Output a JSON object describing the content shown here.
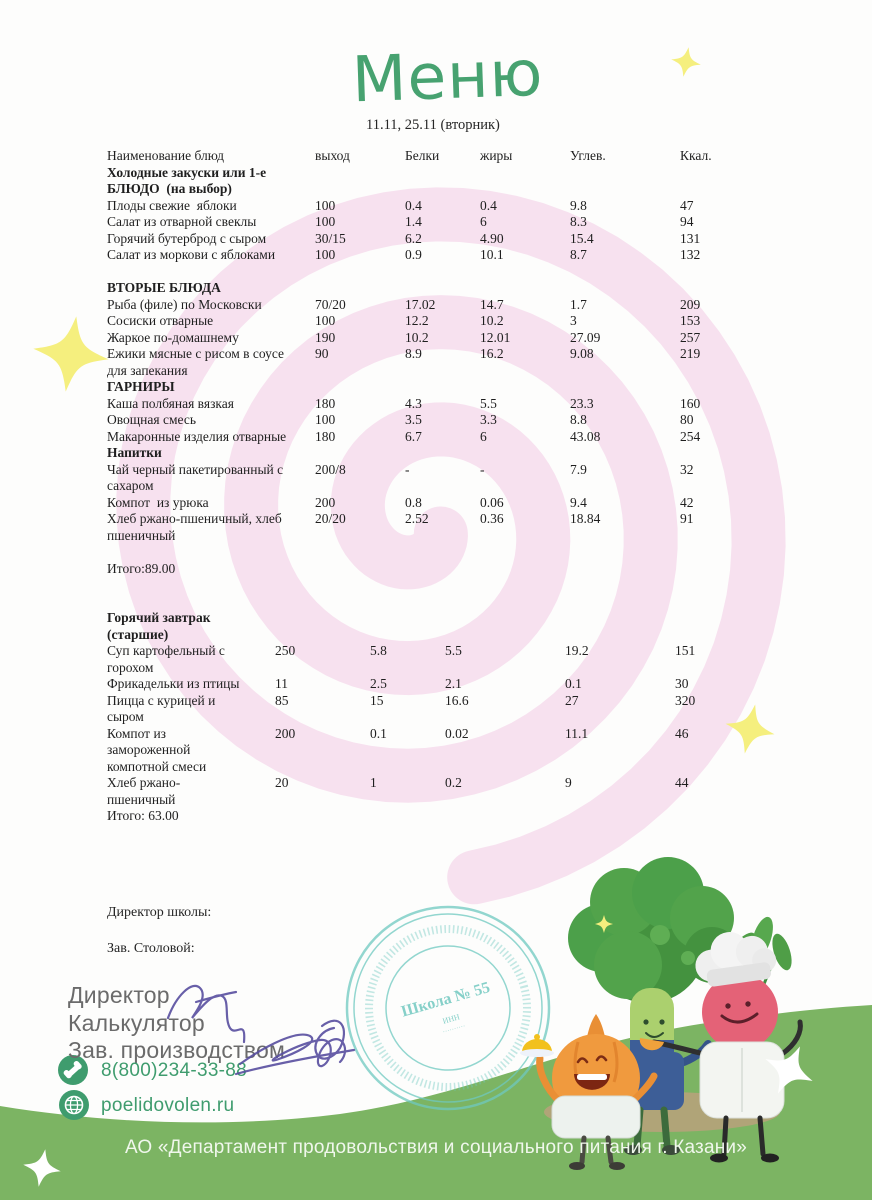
{
  "title": "Меню",
  "subtitle": "11.11, 25.11 (вторник)",
  "colors": {
    "accent_green": "#3f9c6e",
    "title_green": "#47a270",
    "footer_green": "#7cb463",
    "spiral_pink": "#f7e1ef",
    "sparkle_yellow": "#f5ef7e",
    "stamp_teal": "#6fc9c0",
    "ink_blue": "#584fa0",
    "role_gray": "#6b6b6b"
  },
  "table1": {
    "headers": [
      "Наименование блюд",
      "выход",
      "Белки",
      "жиры",
      "Углев.",
      "Ккал."
    ],
    "rows": [
      {
        "type": "section",
        "name": "Холодные закуски или 1-е\nБЛЮДО  (на выбор)"
      },
      {
        "name": "Плоды свежие  яблоки",
        "v": "100",
        "b": "0.4",
        "z": "0.4",
        "u": "9.8",
        "k": "47"
      },
      {
        "name": "Салат из отварной свеклы",
        "v": "100",
        "b": "1.4",
        "z": "6",
        "u": "8.3",
        "k": "94"
      },
      {
        "name": "Горячий бутерброд с сыром",
        "v": "30/15",
        "b": "6.2",
        "z": "4.90",
        "u": "15.4",
        "k": "131"
      },
      {
        "name": "Салат из моркови с яблоками",
        "v": "100",
        "b": "0.9",
        "z": "10.1",
        "u": "8.7",
        "k": "132"
      },
      {
        "type": "spacer"
      },
      {
        "type": "section",
        "name": "ВТОРЫЕ БЛЮДА"
      },
      {
        "name": "Рыба (филе) по Московски",
        "v": "70/20",
        "b": "17.02",
        "z": "14.7",
        "u": "1.7",
        "k": "209"
      },
      {
        "name": "Сосиски отварные",
        "v": "100",
        "b": "12.2",
        "z": "10.2",
        "u": "3",
        "k": "153"
      },
      {
        "name": "Жаркое по-домашнему",
        "v": "190",
        "b": "10.2",
        "z": "12.01",
        "u": "27.09",
        "k": "257"
      },
      {
        "name": "Ежики мясные с рисом в соусе\nдля запекания",
        "v": "90",
        "b": "8.9",
        "z": "16.2",
        "u": "9.08",
        "k": "219"
      },
      {
        "type": "section",
        "name": "ГАРНИРЫ"
      },
      {
        "name": "Каша полбяная вязкая",
        "v": "180",
        "b": "4.3",
        "z": "5.5",
        "u": "23.3",
        "k": "160"
      },
      {
        "name": "Овощная смесь",
        "v": "100",
        "b": "3.5",
        "z": "3.3",
        "u": "8.8",
        "k": "80"
      },
      {
        "name": "Макаронные изделия отварные",
        "v": "180",
        "b": "6.7",
        "z": "6",
        "u": "43.08",
        "k": "254"
      },
      {
        "type": "section",
        "name": "Напитки"
      },
      {
        "name": "Чай черный пакетированный с\nсахаром",
        "v": "200/8",
        "b": "-",
        "z": "-",
        "u": "7.9",
        "k": "32"
      },
      {
        "name": "Компот  из урюка",
        "v": "200",
        "b": "0.8",
        "z": "0.06",
        "u": "9.4",
        "k": "42"
      },
      {
        "name": "Хлеб ржано-пшеничный, хлеб\nпшеничный",
        "v": "20/20",
        "b": "2.52",
        "z": "0.36",
        "u": "18.84",
        "k": "91"
      },
      {
        "type": "spacer"
      },
      {
        "type": "total",
        "name": "Итого:89.00"
      }
    ]
  },
  "table2": {
    "rows": [
      {
        "type": "section",
        "name": "Горячий завтрак\n(старшие)"
      },
      {
        "name": "Суп картофельный с\nгорохом",
        "v": "250",
        "b": "5.8",
        "z": "5.5",
        "u": "19.2",
        "k": "151"
      },
      {
        "name": "Фрикадельки из птицы",
        "v": "11",
        "b": "2.5",
        "z": "2.1",
        "u": "0.1",
        "k": "30"
      },
      {
        "name": "Пицца с курицей и\nсыром",
        "v": "85",
        "b": "15",
        "z": "16.6",
        "u": "27",
        "k": "320"
      },
      {
        "name": "Компот из\nзамороженной\nкомпотной смеси",
        "v": "200",
        "b": "0.1",
        "z": "0.02",
        "u": "11.1",
        "k": "46"
      },
      {
        "name": "Хлеб ржано-\nпшеничный",
        "v": "20",
        "b": "1",
        "z": "0.2",
        "u": "9",
        "k": "44"
      },
      {
        "type": "total",
        "name": "Итого: 63.00"
      }
    ]
  },
  "roles": {
    "school_director": "Директор школы:",
    "canteen_head": "Зав. Столовой:",
    "director": "Директор",
    "calculator": "Калькулятор",
    "production_head": "Зав. производством"
  },
  "contacts": {
    "phone": "8(800)234-33-88",
    "website": "poelidovolen.ru"
  },
  "stamp": {
    "center": "Школа № 55",
    "sub": "ИНН"
  },
  "footer": {
    "text": "АО «Департамент продовольствия и социального питания г. Казани»"
  }
}
